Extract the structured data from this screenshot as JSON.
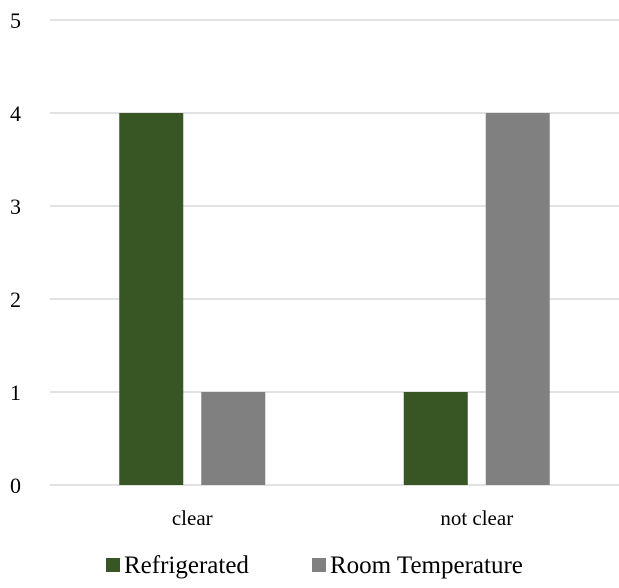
{
  "chart_data": {
    "type": "bar",
    "categories": [
      "clear",
      "not clear"
    ],
    "series": [
      {
        "name": "Refrigerated",
        "values": [
          4,
          1
        ],
        "color": "#375623"
      },
      {
        "name": "Room Temperature",
        "values": [
          1,
          4
        ],
        "color": "#808080"
      }
    ],
    "ylim": [
      0,
      5
    ],
    "yticks": [
      "0",
      "1",
      "2",
      "3",
      "4",
      "5"
    ],
    "grid": true,
    "gridColor": "#d9d9d9",
    "legend": "bottom"
  }
}
